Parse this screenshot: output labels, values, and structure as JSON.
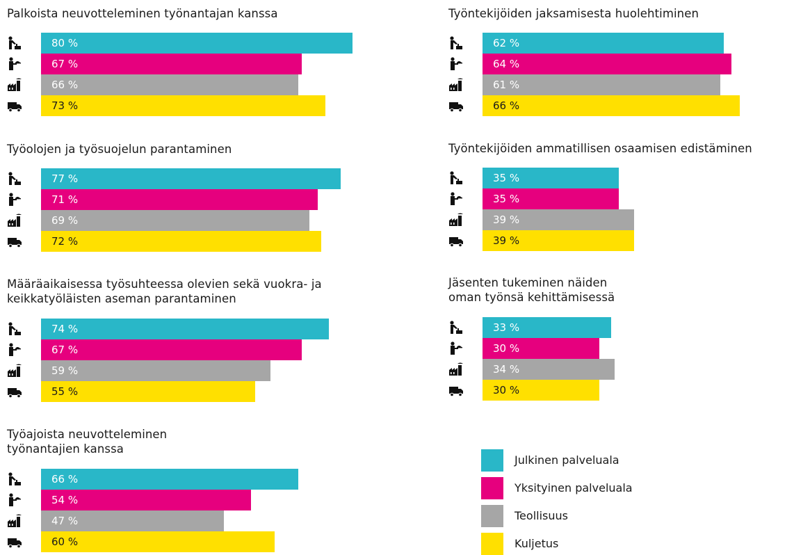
{
  "colors": {
    "julkinen": "#29B7C8",
    "yksityinen": "#E6007E",
    "teollisuus": "#A6A6A6",
    "kuljetus": "#FFE000"
  },
  "chart_data": {
    "type": "bar",
    "orientation": "horizontal",
    "series_keys": [
      "julkinen",
      "yksityinen",
      "teollisuus",
      "kuljetus"
    ],
    "icons": [
      "worker-public-icon",
      "waiter-icon",
      "factory-icon",
      "truck-icon"
    ],
    "value_suffix": " %",
    "panels": [
      {
        "title": [
          "Palkoista neuvotteleminen työnantajan kanssa"
        ],
        "values": [
          80,
          67,
          66,
          73
        ]
      },
      {
        "title": [
          "Työolojen ja työsuojelun parantaminen"
        ],
        "values": [
          77,
          71,
          69,
          72
        ]
      },
      {
        "title": [
          "Määräaikaisessa työsuhteessa olevien sekä vuokra- ja",
          "keikkatyöläisten aseman parantaminen"
        ],
        "values": [
          74,
          67,
          59,
          55
        ]
      },
      {
        "title": [
          "Työajoista neuvotteleminen",
          "työnantajien kanssa"
        ],
        "values": [
          66,
          54,
          47,
          60
        ]
      },
      {
        "title": [
          "Työntekijöiden jaksamisesta huolehtiminen"
        ],
        "values": [
          62,
          64,
          61,
          66
        ]
      },
      {
        "title": [
          "Työntekijöiden ammatillisen osaamisen edistäminen"
        ],
        "values": [
          35,
          35,
          39,
          39
        ]
      },
      {
        "title": [
          "Jäsenten tukeminen näiden",
          "oman työnsä kehittämisessä"
        ],
        "values": [
          33,
          30,
          34,
          30
        ]
      }
    ],
    "legend": [
      {
        "key": "julkinen",
        "label": "Julkinen palveluala"
      },
      {
        "key": "yksityinen",
        "label": "Yksityinen palveluala"
      },
      {
        "key": "teollisuus",
        "label": "Teollisuus"
      },
      {
        "key": "kuljetus",
        "label": "Kuljetus"
      }
    ]
  }
}
